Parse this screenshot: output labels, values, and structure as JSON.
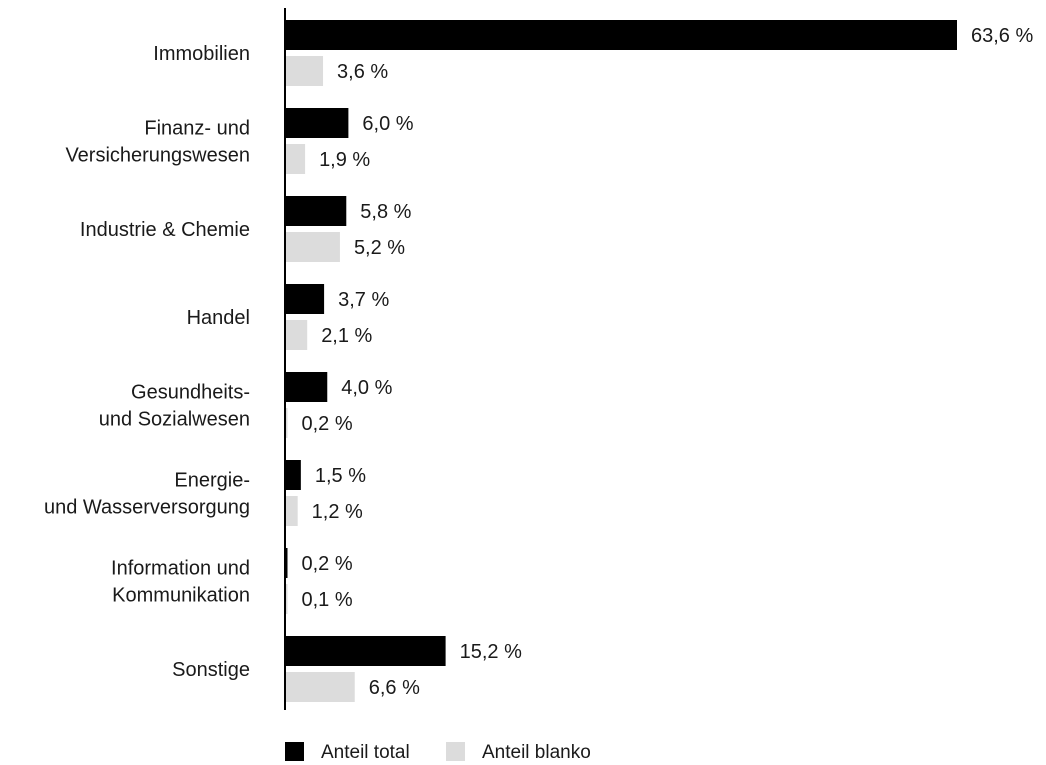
{
  "chart_data": {
    "type": "bar",
    "orientation": "horizontal",
    "title": "",
    "xlabel": "",
    "ylabel": "",
    "xlim": [
      0,
      63.6
    ],
    "grid": false,
    "legend_position": "bottom",
    "categories": [
      [
        "Immobilien"
      ],
      [
        "Finanz- und",
        "Versicherungswesen"
      ],
      [
        "Industrie & Chemie"
      ],
      [
        "Handel"
      ],
      [
        "Gesundheits-",
        "und Sozialwesen"
      ],
      [
        "Energie-",
        "und Wasserversorgung"
      ],
      [
        "Information und",
        "Kommunikation"
      ],
      [
        "Sonstige"
      ]
    ],
    "series": [
      {
        "name": "Anteil total",
        "color": "#000000",
        "values": [
          63.6,
          6.0,
          5.8,
          3.7,
          4.0,
          1.5,
          0.2,
          15.2
        ],
        "labels": [
          "63,6 %",
          "6,0 %",
          "5,8 %",
          "3,7 %",
          "4,0 %",
          "1,5 %",
          "0,2 %",
          "15,2 %"
        ]
      },
      {
        "name": "Anteil blanko",
        "color": "#dcdcdc",
        "values": [
          3.6,
          1.9,
          5.2,
          2.1,
          0.2,
          1.2,
          0.1,
          6.6
        ],
        "labels": [
          "3,6 %",
          "1,9 %",
          "5,2 %",
          "2,1 %",
          "0,2 %",
          "1,2 %",
          "0,1 %",
          "6,6 %"
        ]
      }
    ]
  }
}
